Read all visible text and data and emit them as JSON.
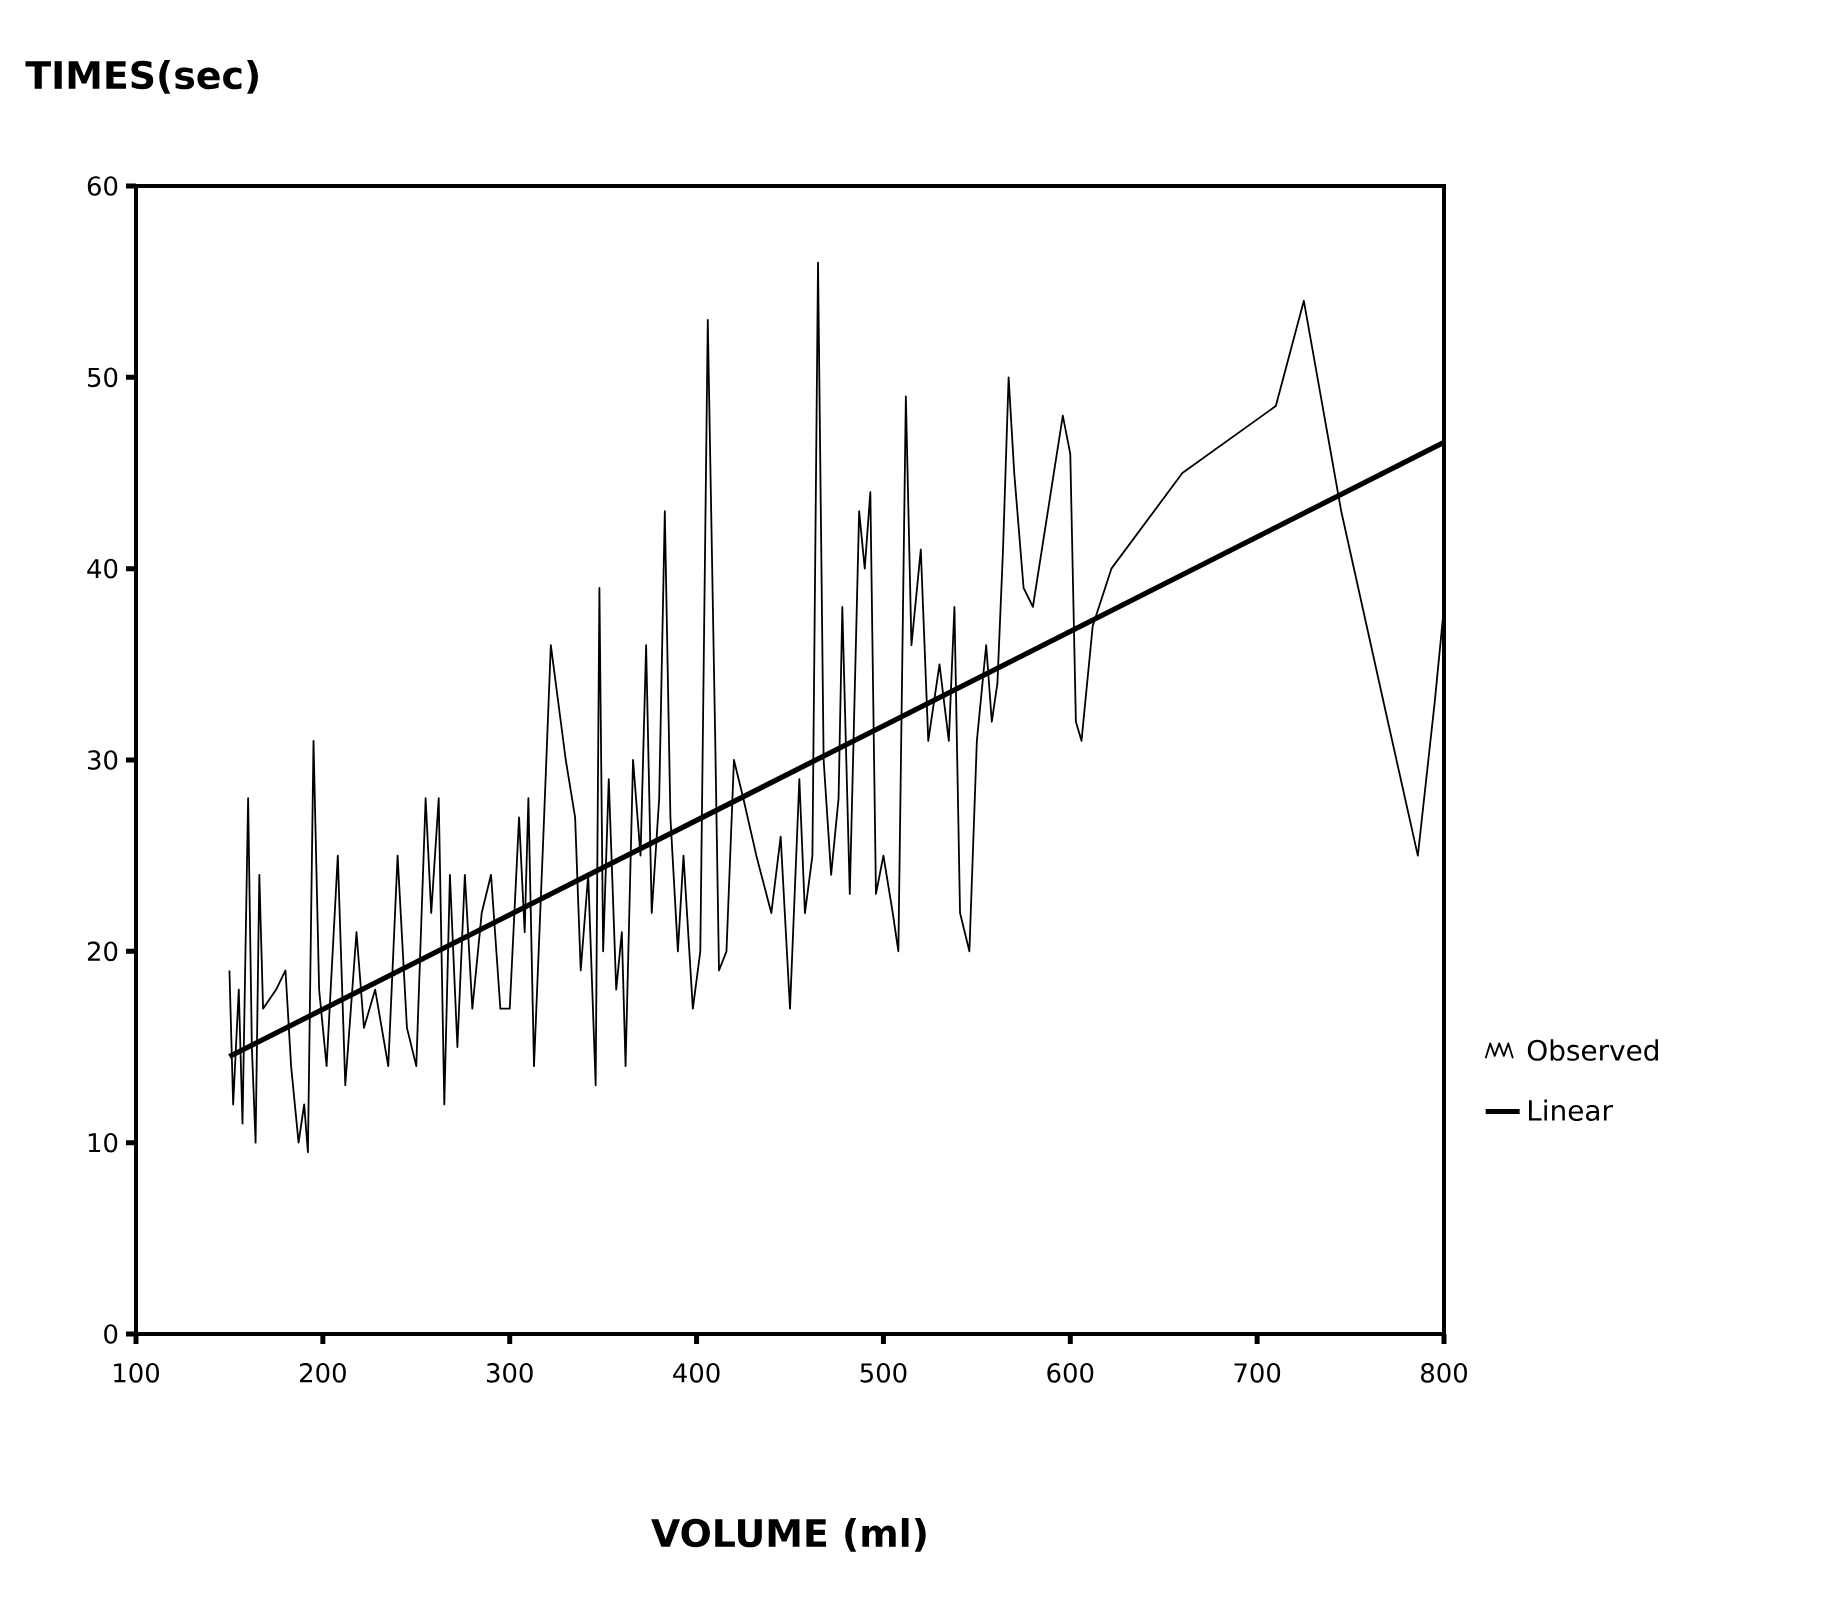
{
  "chart_data": {
    "type": "line",
    "ylabel": "TIMES(sec)",
    "xlabel": "VOLUME (ml)",
    "xlim": [
      100,
      800
    ],
    "xticks": [
      100,
      200,
      300,
      400,
      500,
      600,
      700,
      800
    ],
    "ylim": [
      0,
      60
    ],
    "yticks": [
      0,
      10,
      20,
      30,
      40,
      50,
      60
    ],
    "grid": false,
    "legend": "right",
    "marker": "none",
    "line_style": "solid",
    "series": [
      {
        "name": "Observed",
        "color": "#000000",
        "x": [
          150,
          152,
          155,
          157,
          160,
          162,
          164,
          166,
          168,
          175,
          180,
          183,
          187,
          190,
          192,
          195,
          198,
          202,
          208,
          212,
          218,
          222,
          228,
          235,
          240,
          245,
          250,
          255,
          258,
          262,
          265,
          268,
          272,
          276,
          280,
          285,
          290,
          295,
          300,
          305,
          308,
          310,
          313,
          318,
          322,
          330,
          335,
          338,
          342,
          346,
          348,
          350,
          353,
          357,
          360,
          362,
          366,
          370,
          373,
          376,
          380,
          383,
          386,
          390,
          393,
          398,
          402,
          406,
          410,
          412,
          416,
          420,
          425,
          432,
          440,
          445,
          450,
          455,
          458,
          462,
          465,
          468,
          472,
          476,
          478,
          482,
          487,
          490,
          493,
          496,
          500,
          505,
          508,
          512,
          515,
          520,
          524,
          530,
          535,
          538,
          541,
          546,
          550,
          555,
          558,
          561,
          564,
          567,
          570,
          575,
          580,
          588,
          596,
          600,
          603,
          606,
          612,
          622,
          660,
          710,
          725,
          745,
          770,
          786,
          795,
          800
        ],
        "values": [
          19,
          12,
          18,
          11,
          28,
          15,
          10,
          24,
          17,
          18,
          19,
          14,
          10,
          12,
          9.5,
          31,
          18,
          14,
          25,
          13,
          21,
          16,
          18,
          14,
          25,
          16,
          14,
          28,
          22,
          28,
          12,
          24,
          15,
          24,
          17,
          22,
          24,
          17,
          17,
          27,
          21,
          28,
          14,
          26,
          36,
          30,
          27,
          19,
          24,
          13,
          39,
          20,
          29,
          18,
          21,
          14,
          30,
          25,
          36,
          22,
          28,
          43,
          27,
          20,
          25,
          17,
          20,
          53,
          31,
          19,
          20,
          30,
          28,
          25,
          22,
          26,
          17,
          29,
          22,
          25,
          56,
          30,
          24,
          28,
          38,
          23,
          43,
          40,
          44,
          23,
          25,
          22,
          20,
          49,
          36,
          41,
          31,
          35,
          31,
          38,
          22,
          20,
          31,
          36,
          32,
          34,
          41,
          50,
          45,
          39,
          38,
          43,
          48,
          46,
          32,
          31,
          37,
          40,
          45,
          48.5,
          54,
          43,
          32,
          25,
          33,
          38
        ]
      },
      {
        "name": "Linear",
        "color": "#000000",
        "x": [
          150,
          800
        ],
        "values": [
          14.5,
          46.6
        ]
      }
    ]
  }
}
